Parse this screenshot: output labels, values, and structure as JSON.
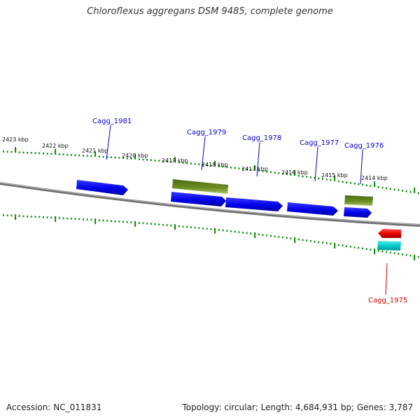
{
  "title": "Chloroflexus aggregans DSM 9485, complete genome",
  "footer": {
    "accession": "Accession: NC_011831",
    "summary": "Topology: circular; Length: 4,684,931 bp; Genes: 3,787"
  },
  "scale": {
    "unit": "kbp",
    "labels": [
      "2423 kbp",
      "2422 kbp",
      "2421 kbp",
      "2420 kbp",
      "2419 kbp",
      "2418 kbp",
      "2417 kbp",
      "2416 kbp",
      "2415 kbp",
      "2414 kbp"
    ]
  },
  "genes": [
    {
      "name": "Cagg_1981",
      "strand": "+",
      "label_color": "#0000cc"
    },
    {
      "name": "Cagg_1979",
      "strand": "+",
      "label_color": "#0000cc"
    },
    {
      "name": "Cagg_1978",
      "strand": "+",
      "label_color": "#0000cc"
    },
    {
      "name": "Cagg_1977",
      "strand": "+",
      "label_color": "#0000cc"
    },
    {
      "name": "Cagg_1976",
      "strand": "+",
      "label_color": "#0000cc"
    },
    {
      "name": "Cagg_1975",
      "strand": "-",
      "label_color": "#cc0000"
    }
  ],
  "colors": {
    "cds_forward": "#0000ee",
    "cds_reverse": "#ee0000",
    "feature_olive": "#6b8e23",
    "feature_cyan": "#00cccc",
    "backbone": "#888888",
    "ticks": "#008800"
  }
}
